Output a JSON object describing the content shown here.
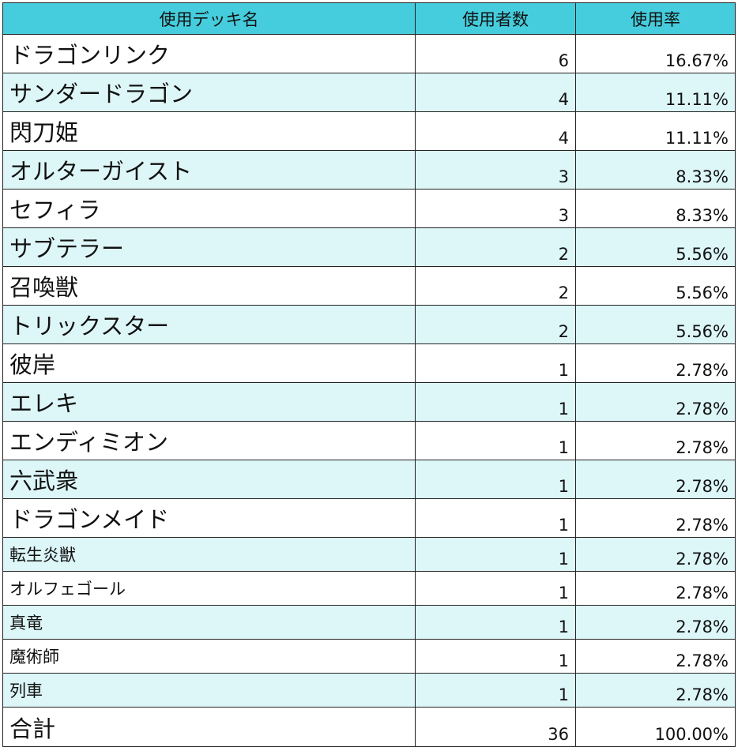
{
  "table": {
    "headers": [
      "使用デッキ名",
      "使用者数",
      "使用率"
    ],
    "rows": [
      {
        "name": "ドラゴンリンク",
        "count": "6",
        "rate": "16.67%"
      },
      {
        "name": "サンダードラゴン",
        "count": "4",
        "rate": "11.11%"
      },
      {
        "name": "閃刀姫",
        "count": "4",
        "rate": "11.11%"
      },
      {
        "name": "オルターガイスト",
        "count": "3",
        "rate": "8.33%"
      },
      {
        "name": "セフィラ",
        "count": "3",
        "rate": "8.33%"
      },
      {
        "name": "サブテラー",
        "count": "2",
        "rate": "5.56%"
      },
      {
        "name": "召喚獣",
        "count": "2",
        "rate": "5.56%"
      },
      {
        "name": "トリックスター",
        "count": "2",
        "rate": "5.56%"
      },
      {
        "name": "彼岸",
        "count": "1",
        "rate": "2.78%"
      },
      {
        "name": "エレキ",
        "count": "1",
        "rate": "2.78%"
      },
      {
        "name": "エンディミオン",
        "count": "1",
        "rate": "2.78%"
      },
      {
        "name": "六武衆",
        "count": "1",
        "rate": "2.78%"
      },
      {
        "name": "ドラゴンメイド",
        "count": "1",
        "rate": "2.78%"
      },
      {
        "name": "転生炎獣",
        "count": "1",
        "rate": "2.78%"
      },
      {
        "name": "オルフェゴール",
        "count": "1",
        "rate": "2.78%"
      },
      {
        "name": "真竜",
        "count": "1",
        "rate": "2.78%"
      },
      {
        "name": "魔術師",
        "count": "1",
        "rate": "2.78%"
      },
      {
        "name": "列車",
        "count": "1",
        "rate": "2.78%"
      }
    ],
    "total": {
      "name": "合計",
      "count": "36",
      "rate": "100.00%"
    }
  },
  "colors": {
    "header_bg": "#45cddd",
    "alt_row_bg": "#ddf6f8",
    "row_bg": "#ffffff",
    "border": "#222222"
  }
}
